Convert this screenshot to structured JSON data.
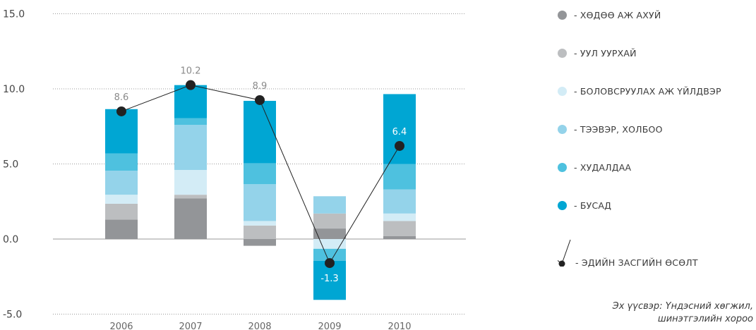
{
  "chart_data": {
    "type": "bar",
    "categories": [
      "2006",
      "2007",
      "2008",
      "2009",
      "2010"
    ],
    "ylim": [
      -5.0,
      15.0
    ],
    "yticks": [
      "-5.0",
      "0.0",
      "5.0",
      "10.0",
      "15.0"
    ],
    "ytick_values": [
      -5,
      0,
      5,
      10,
      15
    ],
    "grid": true,
    "series": [
      {
        "name": "- ХӨДӨӨ АЖ АХУЙ",
        "color": "#939598",
        "values": [
          1.3,
          2.7,
          -0.45,
          0.7,
          0.2
        ]
      },
      {
        "name": "- УУЛ УУРХАЙ",
        "color": "#bcbec0",
        "values": [
          1.05,
          0.25,
          0.9,
          1.0,
          1.0
        ]
      },
      {
        "name": "- БОЛОВСРУУЛАХ АЖ ҮЙЛДВЭР",
        "color": "#d3ecf6",
        "values": [
          0.6,
          1.65,
          0.3,
          -0.65,
          0.5
        ]
      },
      {
        "name": "- ТЭЭВЭР, ХОЛБОО",
        "color": "#94d3ea",
        "values": [
          1.6,
          3.0,
          2.45,
          1.15,
          1.6
        ]
      },
      {
        "name": "- ХУДАЛДАА",
        "color": "#4ec1df",
        "values": [
          1.15,
          0.45,
          1.4,
          -0.8,
          1.7
        ]
      },
      {
        "name": "- БУСАД",
        "color": "#00a6d3",
        "values": [
          2.95,
          2.2,
          4.15,
          -2.6,
          4.65
        ]
      }
    ],
    "line": {
      "name": "- ЭДИЙН ЗАСГИЙН ӨСӨЛТ",
      "values": [
        8.6,
        10.2,
        8.9,
        -1.3,
        6.4
      ],
      "labels": [
        "8.6",
        "10.2",
        "8.9",
        "-1.3",
        "6.4"
      ],
      "plotted": [
        8.5,
        10.25,
        9.25,
        -1.6,
        6.2
      ]
    }
  },
  "legend": [
    {
      "label": "- ХӨДӨӨ АЖ АХУЙ",
      "color": "#939598"
    },
    {
      "label": "- УУЛ УУРХАЙ",
      "color": "#bcbec0"
    },
    {
      "label": "- БОЛОВСРУУЛАХ АЖ ҮЙЛДВЭР",
      "color": "#d3ecf6"
    },
    {
      "label": "- ТЭЭВЭР, ХОЛБОО",
      "color": "#94d3ea"
    },
    {
      "label": "- ХУДАЛДАА",
      "color": "#4ec1df"
    },
    {
      "label": "- БУСАД",
      "color": "#00a6d3"
    }
  ],
  "line_legend": "- ЭДИЙН ЗАСГИЙН ӨСӨЛТ",
  "source": {
    "line1": "Эх үүсвэр: Үндэсний хөгжил,",
    "line2": "шинэтгэлийн хороо"
  }
}
